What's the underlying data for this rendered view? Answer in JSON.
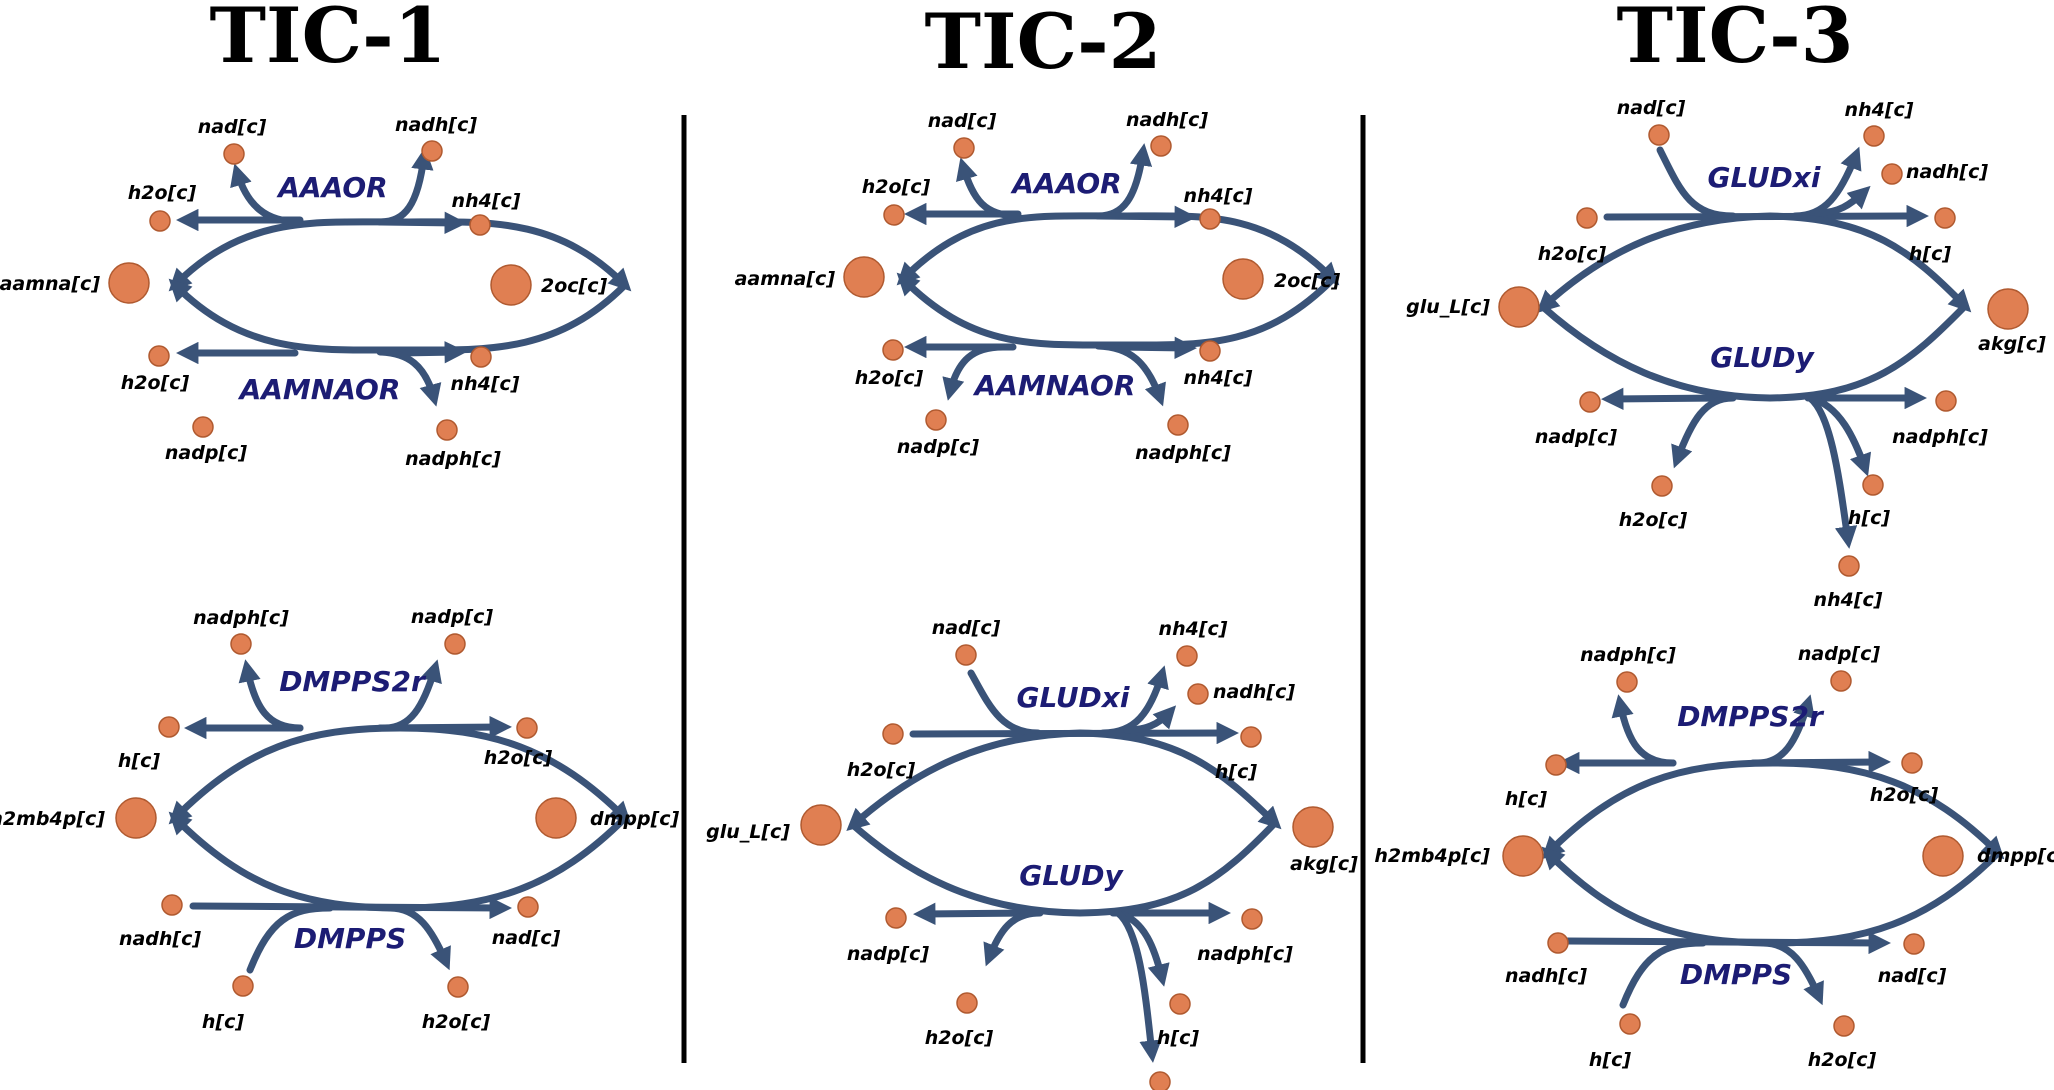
{
  "panels": [
    {
      "title": "TIC-1",
      "top": {
        "reaction_top": "AAAOR",
        "reaction_bottom": "AAMNAOR",
        "left": "aamna[c]",
        "right": "2oc[c]",
        "tl1": "nad[c]",
        "tl2": "h2o[c]",
        "tr1": "nadh[c]",
        "tr2": "nh4[c]",
        "bl1": "h2o[c]",
        "bl2": "nadp[c]",
        "br1": "nh4[c]",
        "br2": "nadph[c]"
      },
      "bottom": {
        "reaction_top": "DMPPS2r",
        "reaction_bottom": "DMPPS",
        "left": "h2mb4p[c]",
        "right": "dmpp[c]",
        "tl1": "nadph[c]",
        "tl2": "h[c]",
        "tr1": "nadp[c]",
        "tr2": "h2o[c]",
        "bl1": "nadh[c]",
        "bl2": "h[c]",
        "br1": "nad[c]",
        "br2": "h2o[c]"
      }
    },
    {
      "title": "TIC-2",
      "top": {
        "reaction_top": "AAAOR",
        "reaction_bottom": "AAMNAOR",
        "left": "aamna[c]",
        "right": "2oc[c]",
        "tl1": "nad[c]",
        "tl2": "h2o[c]",
        "tr1": "nadh[c]",
        "tr2": "nh4[c]",
        "bl1": "h2o[c]",
        "bl2": "nadp[c]",
        "br1": "nh4[c]",
        "br2": "nadph[c]"
      },
      "bottom": {
        "reaction_top": "GLUDxi",
        "reaction_bottom": "GLUDy",
        "left": "glu_L[c]",
        "right": "akg[c]",
        "tl1": "nad[c]",
        "tl2": "h2o[c]",
        "tr1": "nh4[c]",
        "tr2": "nadh[c]",
        "tr3": "h[c]",
        "bl1": "nadp[c]",
        "bl2": "h2o[c]",
        "br1": "nadph[c]",
        "br2": "h[c]",
        "br3": ""
      }
    },
    {
      "title": "TIC-3",
      "top": {
        "reaction_top": "GLUDxi",
        "reaction_bottom": "GLUDy",
        "left": "glu_L[c]",
        "right": "akg[c]",
        "tl1": "nad[c]",
        "tl2": "h2o[c]",
        "tr1": "nh4[c]",
        "tr2": "nadh[c]",
        "tr3": "h[c]",
        "bl1": "nadp[c]",
        "bl2": "h2o[c]",
        "br1": "nadph[c]",
        "br2": "h[c]",
        "br3": "nh4[c]"
      },
      "bottom": {
        "reaction_top": "DMPPS2r",
        "reaction_bottom": "DMPPS",
        "left": "h2mb4p[c]",
        "right": "dmpp[c]",
        "tl1": "nadph[c]",
        "tl2": "h[c]",
        "tr1": "nadp[c]",
        "tr2": "h2o[c]",
        "bl1": "nadh[c]",
        "bl2": "h[c]",
        "br1": "nad[c]",
        "br2": "h2o[c]"
      }
    }
  ],
  "colors": {
    "flux": "#3a5378",
    "node": "#e07f52",
    "reaction_label": "#1c1c74"
  }
}
